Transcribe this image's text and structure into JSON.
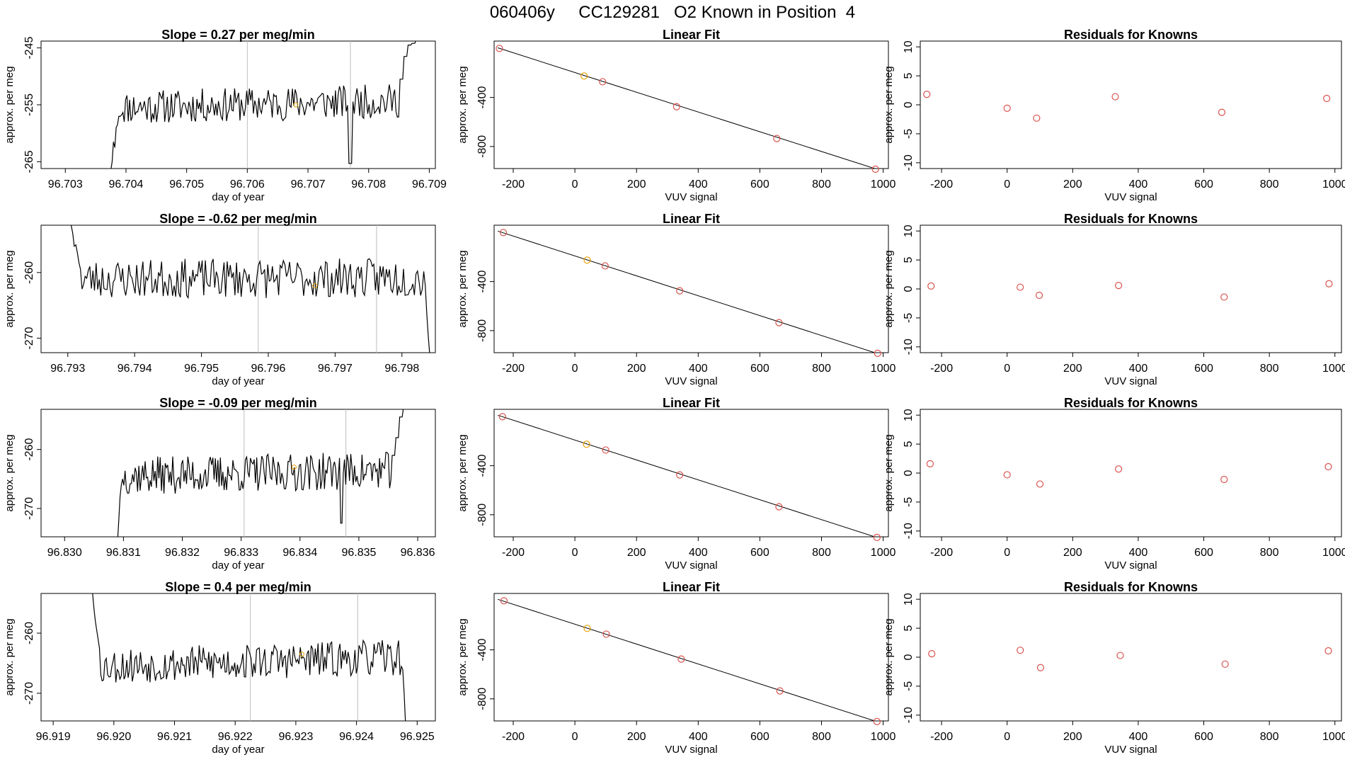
{
  "page": {
    "title": "060406y     CC129281   O2 Known in Position  4"
  },
  "colors": {
    "trace": "#000000",
    "box": "#000000",
    "vline": "#bebebe",
    "point": "#d9534f",
    "highlight_point": "#e69f00",
    "fit_line": "#000000"
  },
  "chart_data": [
    {
      "panel": "time-series",
      "row": 1,
      "type": "line",
      "title": "Slope =  0.27  per meg/min",
      "xlabel": "day of year",
      "ylabel": "approx. per meg",
      "xlim": [
        96.7026,
        96.7091
      ],
      "ylim": [
        -266.2,
        -243.8
      ],
      "xticks": [
        "96.703",
        "96.704",
        "96.705",
        "96.706",
        "96.707",
        "96.708",
        "96.709"
      ],
      "yticks": [
        "-245",
        "-255",
        "-265"
      ],
      "vlines": [
        96.706,
        96.7077
      ],
      "highlight": {
        "x": 96.7068,
        "y": -255.0
      },
      "trace": {
        "x_start": 96.70375,
        "x_end": 96.70885,
        "head": [
          -266.5,
          -265.0,
          -261.5,
          -262.5,
          -259.0,
          -258.5,
          -257.0
        ],
        "level_start": -255.5,
        "level_end": -254.2,
        "noise": 3.0,
        "spikes": [
          {
            "x": 96.7077,
            "y": -265.3
          }
        ],
        "tail_start": 96.7085,
        "tail": [
          -250.5,
          -246.5,
          -244.5,
          -244.2,
          -243.5
        ],
        "seed": 11
      }
    },
    {
      "panel": "linear-fit",
      "row": 1,
      "type": "scatter",
      "title": "Linear Fit",
      "xlabel": "VUV signal",
      "ylabel": "approx. per meg",
      "xlim": [
        -262,
        1017
      ],
      "ylim": [
        -980,
        60
      ],
      "xticks": [
        "-200",
        "0",
        "200",
        "400",
        "600",
        "800",
        "1000"
      ],
      "yticks": [
        "-400",
        "-800"
      ],
      "points": [
        [
          -245,
          0
        ],
        [
          30,
          -225
        ],
        [
          90,
          -272
        ],
        [
          330,
          -475
        ],
        [
          655,
          -735
        ],
        [
          975,
          -985
        ]
      ],
      "highlight_index": 1,
      "fit": [
        [
          -250,
          5
        ],
        [
          985,
          -990
        ]
      ]
    },
    {
      "panel": "residuals",
      "row": 1,
      "type": "scatter",
      "title": "Residuals for Knowns",
      "xlabel": "VUV signal",
      "ylabel": "approx. per meg",
      "xlim": [
        -265,
        1020
      ],
      "ylim": [
        -11,
        11
      ],
      "xticks": [
        "-200",
        "0",
        "200",
        "400",
        "600",
        "800",
        "1000"
      ],
      "yticks": [
        "10",
        "5",
        "0",
        "-5",
        "-10"
      ],
      "points": [
        [
          -245,
          1.8
        ],
        [
          0,
          -0.6
        ],
        [
          90,
          -2.3
        ],
        [
          330,
          1.4
        ],
        [
          655,
          -1.3
        ],
        [
          975,
          1.1
        ]
      ]
    },
    {
      "panel": "time-series",
      "row": 2,
      "type": "line",
      "title": "Slope =  -0.62  per meg/min",
      "xlabel": "day of year",
      "ylabel": "approx. per meg",
      "xlim": [
        96.7926,
        96.7985
      ],
      "ylim": [
        -272.2,
        -252.8
      ],
      "xticks": [
        "96.793",
        "96.794",
        "96.795",
        "96.796",
        "96.797",
        "96.798"
      ],
      "yticks": [
        "-260",
        "-270"
      ],
      "vlines": [
        96.79585,
        96.79762
      ],
      "highlight": {
        "x": 96.7967,
        "y": -262.0
      },
      "trace": {
        "x_start": 96.79305,
        "x_end": 96.79842,
        "head": [
          -252.8,
          -254.0,
          -256.0,
          -255.8,
          -257.0,
          -258.5,
          -259.5
        ],
        "level_start": -261.0,
        "level_end": -260.8,
        "noise": 3.0,
        "spikes": [],
        "tail_start": 96.79835,
        "tail": [
          -263.0,
          -266.5,
          -270.0,
          -273.0
        ],
        "seed": 23
      }
    },
    {
      "panel": "linear-fit",
      "row": 2,
      "type": "scatter",
      "title": "Linear Fit",
      "xlabel": "VUV signal",
      "ylabel": "approx. per meg",
      "xlim": [
        -262,
        1017
      ],
      "ylim": [
        -980,
        60
      ],
      "xticks": [
        "-200",
        "0",
        "200",
        "400",
        "600",
        "800",
        "1000"
      ],
      "yticks": [
        "-400",
        "-800"
      ],
      "points": [
        [
          -232,
          0
        ],
        [
          40,
          -225
        ],
        [
          98,
          -272
        ],
        [
          340,
          -475
        ],
        [
          662,
          -735
        ],
        [
          982,
          -985
        ]
      ],
      "highlight_index": 1,
      "fit": [
        [
          -250,
          12
        ],
        [
          985,
          -990
        ]
      ]
    },
    {
      "panel": "residuals",
      "row": 2,
      "type": "scatter",
      "title": "Residuals for Knowns",
      "xlabel": "VUV signal",
      "ylabel": "approx. per meg",
      "xlim": [
        -265,
        1020
      ],
      "ylim": [
        -11,
        11
      ],
      "xticks": [
        "-200",
        "0",
        "200",
        "400",
        "600",
        "800",
        "1000"
      ],
      "yticks": [
        "10",
        "5",
        "0",
        "-5",
        "-10"
      ],
      "points": [
        [
          -232,
          0.5
        ],
        [
          40,
          0.3
        ],
        [
          98,
          -1.1
        ],
        [
          340,
          0.6
        ],
        [
          662,
          -1.4
        ],
        [
          982,
          0.9
        ]
      ]
    },
    {
      "panel": "time-series",
      "row": 3,
      "type": "line",
      "title": "Slope =  -0.09  per meg/min",
      "xlabel": "day of year",
      "ylabel": "approx. per meg",
      "xlim": [
        96.8296,
        96.8363
      ],
      "ylim": [
        -274.8,
        -253.2
      ],
      "xticks": [
        "96.830",
        "96.831",
        "96.832",
        "96.833",
        "96.834",
        "96.835",
        "96.836"
      ],
      "yticks": [
        "-260",
        "-270"
      ],
      "vlines": [
        96.83305,
        96.83478
      ],
      "highlight": {
        "x": 96.8339,
        "y": -263.0
      },
      "trace": {
        "x_start": 96.8309,
        "x_end": 96.8358,
        "head": [
          -275.5,
          -272.0,
          -268.0,
          -266.0,
          -265.0
        ],
        "level_start": -264.5,
        "level_end": -263.5,
        "noise": 3.2,
        "spikes": [
          {
            "x": 96.8347,
            "y": -272.5
          }
        ],
        "tail_start": 96.83555,
        "tail": [
          -261.0,
          -258.0,
          -254.5,
          -253.0
        ],
        "seed": 37
      }
    },
    {
      "panel": "linear-fit",
      "row": 3,
      "type": "scatter",
      "title": "Linear Fit",
      "xlabel": "VUV signal",
      "ylabel": "approx. per meg",
      "xlim": [
        -262,
        1017
      ],
      "ylim": [
        -980,
        60
      ],
      "xticks": [
        "-200",
        "0",
        "200",
        "400",
        "600",
        "800",
        "1000"
      ],
      "yticks": [
        "-400",
        "-800"
      ],
      "points": [
        [
          -235,
          0
        ],
        [
          38,
          -225
        ],
        [
          100,
          -272
        ],
        [
          340,
          -475
        ],
        [
          662,
          -735
        ],
        [
          980,
          -985
        ]
      ],
      "highlight_index": 1,
      "fit": [
        [
          -250,
          12
        ],
        [
          985,
          -990
        ]
      ]
    },
    {
      "panel": "residuals",
      "row": 3,
      "type": "scatter",
      "title": "Residuals for Knowns",
      "xlabel": "VUV signal",
      "ylabel": "approx. per meg",
      "xlim": [
        -265,
        1020
      ],
      "ylim": [
        -11,
        11
      ],
      "xticks": [
        "-200",
        "0",
        "200",
        "400",
        "600",
        "800",
        "1000"
      ],
      "yticks": [
        "10",
        "5",
        "0",
        "-5",
        "-10"
      ],
      "points": [
        [
          -235,
          1.6
        ],
        [
          0,
          -0.3
        ],
        [
          100,
          -1.9
        ],
        [
          340,
          0.7
        ],
        [
          662,
          -1.1
        ],
        [
          980,
          1.1
        ]
      ]
    },
    {
      "panel": "time-series",
      "row": 4,
      "type": "line",
      "title": "Slope =  0.4  per meg/min",
      "xlabel": "day of year",
      "ylabel": "approx. per meg",
      "xlim": [
        96.9188,
        96.9253
      ],
      "ylim": [
        -274.6,
        -253.4
      ],
      "xticks": [
        "96.919",
        "96.920",
        "96.921",
        "96.922",
        "96.923",
        "96.924",
        "96.925"
      ],
      "yticks": [
        "-260",
        "-270"
      ],
      "vlines": [
        96.92225,
        96.92402
      ],
      "highlight": {
        "x": 96.9231,
        "y": -263.5
      },
      "trace": {
        "x_start": 96.91965,
        "x_end": 96.92483,
        "head": [
          -253.4,
          -256.0,
          -258.0,
          -259.5,
          -261.0,
          -262.5
        ],
        "level_start": -265.5,
        "level_end": -264.0,
        "noise": 3.0,
        "spikes": [],
        "tail_start": 96.92475,
        "tail": [
          -266.0,
          -270.0,
          -275.0
        ],
        "seed": 53
      }
    },
    {
      "panel": "linear-fit",
      "row": 4,
      "type": "scatter",
      "title": "Linear Fit",
      "xlabel": "VUV signal",
      "ylabel": "approx. per meg",
      "xlim": [
        -262,
        1017
      ],
      "ylim": [
        -980,
        60
      ],
      "xticks": [
        "-200",
        "0",
        "200",
        "400",
        "600",
        "800",
        "1000"
      ],
      "yticks": [
        "-400",
        "-800"
      ],
      "points": [
        [
          -230,
          0
        ],
        [
          40,
          -225
        ],
        [
          102,
          -272
        ],
        [
          345,
          -475
        ],
        [
          665,
          -735
        ],
        [
          980,
          -985
        ]
      ],
      "highlight_index": 1,
      "fit": [
        [
          -250,
          12
        ],
        [
          985,
          -990
        ]
      ]
    },
    {
      "panel": "residuals",
      "row": 4,
      "type": "scatter",
      "title": "Residuals for Knowns",
      "xlabel": "VUV signal",
      "ylabel": "approx. per meg",
      "xlim": [
        -265,
        1020
      ],
      "ylim": [
        -11,
        11
      ],
      "xticks": [
        "-200",
        "0",
        "200",
        "400",
        "600",
        "800",
        "1000"
      ],
      "yticks": [
        "10",
        "5",
        "0",
        "-5",
        "-10"
      ],
      "points": [
        [
          -230,
          0.6
        ],
        [
          40,
          1.2
        ],
        [
          102,
          -1.8
        ],
        [
          345,
          0.3
        ],
        [
          665,
          -1.2
        ],
        [
          980,
          1.1
        ]
      ]
    }
  ]
}
